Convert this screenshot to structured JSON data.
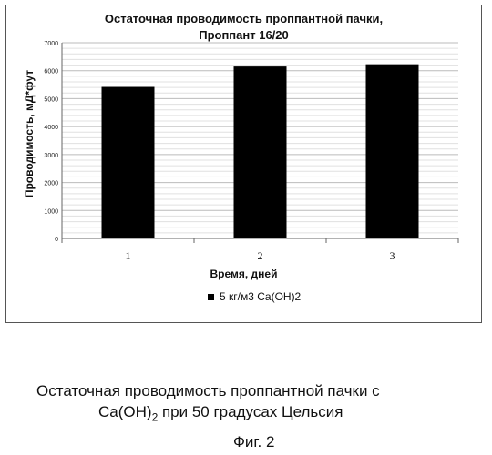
{
  "chart_data": {
    "type": "bar",
    "title_line1": "Остаточная проводимость проппантной пачки,",
    "title_line2": "Проппант 16/20",
    "xlabel": "Время, дней",
    "ylabel": "Проводимость, мД*фут",
    "categories": [
      "1",
      "2",
      "3"
    ],
    "series": [
      {
        "name": "5 кг/м3 Ca(OH)2",
        "values": [
          5420,
          6150,
          6230
        ],
        "color": "#000000"
      }
    ],
    "ylim": [
      0,
      7000
    ],
    "yticks": [
      0,
      1000,
      2000,
      3000,
      4000,
      5000,
      6000,
      7000
    ],
    "grid": true,
    "legend": "bottom"
  },
  "caption": {
    "line1": "Остаточная проводимость проппантной пачки с",
    "line2_a": "Ca(OH)",
    "line2_sub": "2",
    "line2_b": " при 50 градусах Цельсия",
    "figure": "Фиг. 2"
  }
}
